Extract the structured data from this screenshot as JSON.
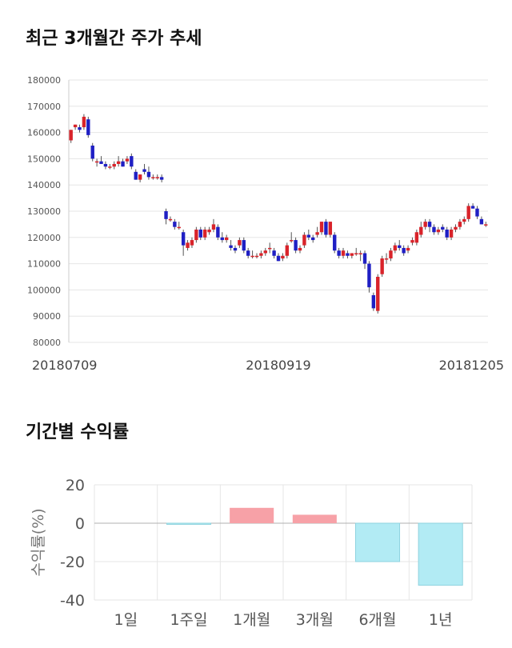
{
  "page": {
    "title_price": "최근 3개월간 주가 추세",
    "title_returns": "기간별 수익률"
  },
  "colors": {
    "up": "#d9232a",
    "down": "#1f1fc4",
    "grid": "#e6e6e6",
    "positive_bar": "#f7a1a7",
    "negative_bar": "#b2ebf4",
    "negative_bar_edge": "#8fd3df"
  },
  "chart_data": [
    {
      "type": "candlestick",
      "ylim": [
        80000,
        180000
      ],
      "yticks": [
        80000,
        90000,
        100000,
        110000,
        120000,
        130000,
        140000,
        150000,
        160000,
        170000,
        180000
      ],
      "ytick_labels": [
        "80000",
        "90000",
        "100000",
        "110000",
        "120000",
        "130000",
        "140000",
        "150000",
        "160000",
        "170000",
        "180000"
      ],
      "x_labels": [
        {
          "index": 0,
          "label": "20180709"
        },
        {
          "index": 48,
          "label": "20180919"
        },
        {
          "index": 97,
          "label": "20181205"
        }
      ],
      "candles": [
        [
          157000,
          161000,
          156000,
          161000
        ],
        [
          162000,
          163000,
          161000,
          163000
        ],
        [
          162000,
          163000,
          160000,
          161000
        ],
        [
          162000,
          167000,
          161000,
          166000
        ],
        [
          165000,
          166000,
          158000,
          159000
        ],
        [
          155000,
          156000,
          149000,
          150000
        ],
        [
          149000,
          150000,
          147000,
          149000
        ],
        [
          149000,
          151000,
          148000,
          148000
        ],
        [
          148000,
          149000,
          146000,
          147000
        ],
        [
          147000,
          148000,
          146000,
          147000
        ],
        [
          147000,
          149000,
          146000,
          148000
        ],
        [
          148000,
          151000,
          147000,
          149000
        ],
        [
          149000,
          150000,
          147000,
          147000
        ],
        [
          149000,
          151000,
          148000,
          150000
        ],
        [
          151000,
          152000,
          146000,
          147000
        ],
        [
          145000,
          146000,
          142000,
          142000
        ],
        [
          142000,
          144000,
          141000,
          144000
        ],
        [
          146000,
          148000,
          144000,
          145000
        ],
        [
          145000,
          147000,
          142000,
          143000
        ],
        [
          143000,
          144000,
          142000,
          143000
        ],
        [
          143000,
          144000,
          142000,
          143000
        ],
        [
          143000,
          144000,
          141000,
          142000
        ],
        [
          130000,
          131000,
          125000,
          127000
        ],
        [
          127000,
          128000,
          126000,
          127000
        ],
        [
          126000,
          127000,
          123000,
          124000
        ],
        [
          124000,
          126000,
          123000,
          124000
        ],
        [
          122000,
          123000,
          113000,
          117000
        ],
        [
          116000,
          119000,
          115000,
          118000
        ],
        [
          117000,
          120000,
          116000,
          119000
        ],
        [
          119000,
          124000,
          118000,
          123000
        ],
        [
          123000,
          124000,
          119000,
          120000
        ],
        [
          120000,
          124000,
          119000,
          123000
        ],
        [
          122000,
          124000,
          121000,
          123000
        ],
        [
          123000,
          127000,
          122000,
          125000
        ],
        [
          124000,
          125000,
          119000,
          120000
        ],
        [
          120000,
          122000,
          118000,
          119000
        ],
        [
          119000,
          121000,
          118000,
          120000
        ],
        [
          117000,
          119000,
          115000,
          116000
        ],
        [
          116000,
          117000,
          114000,
          115000
        ],
        [
          117000,
          120000,
          116000,
          119000
        ],
        [
          119000,
          120000,
          114000,
          115000
        ],
        [
          115000,
          116000,
          112000,
          113000
        ],
        [
          113000,
          115000,
          112000,
          113000
        ],
        [
          113000,
          114000,
          112000,
          113000
        ],
        [
          113000,
          115000,
          112000,
          114000
        ],
        [
          114000,
          116000,
          113000,
          115000
        ],
        [
          116000,
          118000,
          114000,
          116000
        ],
        [
          115000,
          116000,
          112000,
          113000
        ],
        [
          113000,
          114000,
          111000,
          111000
        ],
        [
          112000,
          114000,
          111000,
          113000
        ],
        [
          113000,
          118000,
          112000,
          117000
        ],
        [
          119000,
          122000,
          118000,
          119000
        ],
        [
          119000,
          120000,
          114000,
          115000
        ],
        [
          115000,
          117000,
          114000,
          116000
        ],
        [
          117000,
          122000,
          116000,
          121000
        ],
        [
          121000,
          123000,
          119000,
          120000
        ],
        [
          120000,
          121000,
          118000,
          119000
        ],
        [
          121000,
          124000,
          120000,
          122000
        ],
        [
          122000,
          126000,
          121000,
          126000
        ],
        [
          126000,
          127000,
          120000,
          121000
        ],
        [
          121000,
          126000,
          120000,
          126000
        ],
        [
          121000,
          122000,
          114000,
          115000
        ],
        [
          115000,
          116000,
          112000,
          113000
        ],
        [
          113000,
          116000,
          112000,
          115000
        ],
        [
          114000,
          115000,
          112000,
          113000
        ],
        [
          113000,
          114000,
          112000,
          114000
        ],
        [
          114000,
          116000,
          113000,
          114000
        ],
        [
          114000,
          115000,
          111000,
          114000
        ],
        [
          114000,
          115000,
          108000,
          110000
        ],
        [
          110000,
          111000,
          99000,
          101000
        ],
        [
          98000,
          99000,
          92000,
          93000
        ],
        [
          92000,
          106000,
          91000,
          105000
        ],
        [
          106000,
          113000,
          105000,
          112000
        ],
        [
          112000,
          114000,
          110000,
          112000
        ],
        [
          112000,
          116000,
          111000,
          115000
        ],
        [
          115000,
          118000,
          114000,
          117000
        ],
        [
          117000,
          119000,
          115000,
          116000
        ],
        [
          116000,
          117000,
          113000,
          114000
        ],
        [
          115000,
          117000,
          114000,
          116000
        ],
        [
          118000,
          120000,
          117000,
          119000
        ],
        [
          118000,
          123000,
          117000,
          122000
        ],
        [
          121000,
          126000,
          120000,
          124000
        ],
        [
          124000,
          127000,
          123000,
          126000
        ],
        [
          126000,
          127000,
          122000,
          124000
        ],
        [
          124000,
          125000,
          121000,
          122000
        ],
        [
          122000,
          124000,
          121000,
          123000
        ],
        [
          124000,
          125000,
          122000,
          123000
        ],
        [
          123000,
          124000,
          119000,
          120000
        ],
        [
          120000,
          124000,
          119000,
          123000
        ],
        [
          123000,
          125000,
          122000,
          124000
        ],
        [
          124000,
          127000,
          123000,
          126000
        ],
        [
          126000,
          128000,
          125000,
          127000
        ],
        [
          127000,
          133000,
          126000,
          132000
        ],
        [
          132000,
          133000,
          131000,
          131000
        ],
        [
          131000,
          132000,
          127000,
          128000
        ],
        [
          127000,
          128000,
          125000,
          125000
        ],
        [
          125000,
          126000,
          124000,
          125000
        ]
      ]
    },
    {
      "type": "bar",
      "categories": [
        "1일",
        "1주일",
        "1개월",
        "3개월",
        "6개월",
        "1년"
      ],
      "values": [
        0,
        -0.6,
        8.0,
        4.4,
        -20.0,
        -32.3
      ],
      "ylabel": "수익률(%)",
      "ylim": [
        -40,
        20
      ],
      "yticks": [
        -40,
        -20,
        0,
        20
      ],
      "ytick_labels": [
        "-40",
        "-20",
        "0",
        "20"
      ]
    }
  ]
}
